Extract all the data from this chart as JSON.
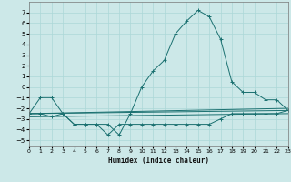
{
  "xlabel": "Humidex (Indice chaleur)",
  "background_color": "#cce8e8",
  "grid_color": "#b0d8d8",
  "line_color": "#1a7070",
  "xlim": [
    0,
    23
  ],
  "ylim": [
    -5.5,
    8.0
  ],
  "yticks": [
    -5,
    -4,
    -3,
    -2,
    -1,
    0,
    1,
    2,
    3,
    4,
    5,
    6,
    7
  ],
  "xticks": [
    0,
    1,
    2,
    3,
    4,
    5,
    6,
    7,
    8,
    9,
    10,
    11,
    12,
    13,
    14,
    15,
    16,
    17,
    18,
    19,
    20,
    21,
    22,
    23
  ],
  "curve1_x": [
    0,
    1,
    2,
    3,
    4,
    5,
    6,
    7,
    8,
    9,
    10,
    11,
    12,
    13,
    14,
    15,
    16,
    17,
    18,
    19,
    20,
    21,
    22,
    23
  ],
  "curve1_y": [
    -2.5,
    -1.0,
    -1.0,
    -2.5,
    -3.5,
    -3.5,
    -3.5,
    -3.5,
    -4.5,
    -2.5,
    0.0,
    1.5,
    2.5,
    5.0,
    6.2,
    7.2,
    6.6,
    4.5,
    0.5,
    -0.5,
    -0.5,
    -1.2,
    -1.2,
    -2.2
  ],
  "curve2_x": [
    0,
    1,
    2,
    3,
    4,
    5,
    6,
    7,
    8,
    9,
    10,
    11,
    12,
    13,
    14,
    15,
    16,
    17,
    18,
    19,
    20,
    21,
    22,
    23
  ],
  "curve2_y": [
    -2.5,
    -2.5,
    -2.8,
    -2.5,
    -3.5,
    -3.5,
    -3.5,
    -4.5,
    -3.5,
    -3.5,
    -3.5,
    -3.5,
    -3.5,
    -3.5,
    -3.5,
    -3.5,
    -3.5,
    -3.0,
    -2.5,
    -2.5,
    -2.5,
    -2.5,
    -2.5,
    -2.2
  ],
  "trend1_x": [
    0,
    23
  ],
  "trend1_y": [
    -2.5,
    -2.2
  ],
  "trend2_x": [
    0,
    23
  ],
  "trend2_y": [
    -2.5,
    -2.0
  ],
  "trend3_x": [
    0,
    23
  ],
  "trend3_y": [
    -2.8,
    -2.5
  ]
}
